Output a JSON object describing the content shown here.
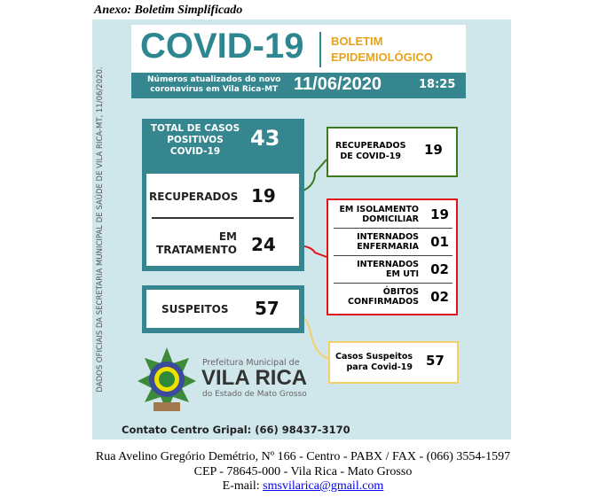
{
  "annex_title": "Anexo: Boletim Simplificado",
  "side_note": "DADOS OFICIAIS DA SECRETARIA MUNICIPAL DE SAÚDE DE VILA RICA-MT, 11/06/2020.",
  "header": {
    "title": "COVID-19",
    "subtitle_1": "BOLETIM",
    "subtitle_2": "EPIDEMIOLÓGICO",
    "sub_1": "Números atualizados do novo",
    "sub_2": "coronavirus em Vila Rica-MT",
    "date": "11/06/2020",
    "time": "18:25"
  },
  "totals": {
    "label_1": "TOTAL DE CASOS",
    "label_2": "POSITIVOS",
    "label_3": "COVID-19",
    "value": "43",
    "recovered_label": "RECUPERADOS",
    "recovered": "19",
    "treatment_label_1": "EM",
    "treatment_label_2": "TRATAMENTO",
    "treatment": "24"
  },
  "recovered_box": {
    "label_1": "RECUPERADOS",
    "label_2": "DE COVID-19",
    "value": "19"
  },
  "treatment_rows": [
    {
      "l1": "EM ISOLAMENTO",
      "l2": "DOMICILIAR",
      "value": "19"
    },
    {
      "l1": "INTERNADOS",
      "l2": "ENFERMARIA",
      "value": "01"
    },
    {
      "l1": "INTERNADOS",
      "l2": "EM UTI",
      "value": "02"
    },
    {
      "l1": "ÓBITOS",
      "l2": "CONFIRMADOS",
      "value": "02"
    }
  ],
  "suspects": {
    "label": "SUSPEITOS",
    "value": "57",
    "box_l1": "Casos Suspeitos",
    "box_l2": "para Covid-19",
    "box_value": "57"
  },
  "logo": {
    "l1": "Prefeitura Municipal de",
    "l2": "VILA RICA",
    "l3": "do Estado de Mato Grosso"
  },
  "contact": "Contato Centro Gripal: (66) 98437-3170",
  "footer": {
    "line1": "Rua Avelino Gregório Demétrio, Nº 166 - Centro - PABX / FAX - (066) 3554-1597",
    "line2": "CEP - 78645-000 - Vila Rica - Mato Grosso",
    "email_label": "E-mail: ",
    "email": "smsvilarica@gmail.com"
  },
  "colors": {
    "teal": "#35868f",
    "orange": "#e8a21a",
    "green": "#3c7a1d",
    "red": "#e0141a",
    "yellow": "#f3d06a",
    "panel": "#cfe6eb"
  }
}
